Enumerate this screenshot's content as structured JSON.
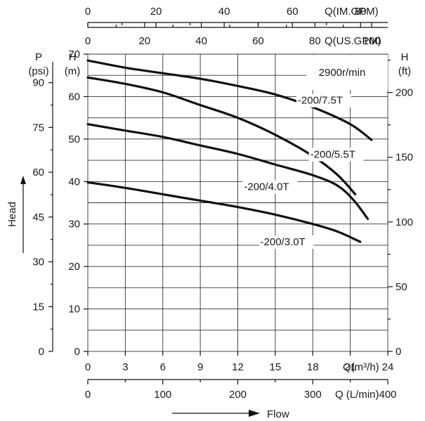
{
  "chart_data": {
    "type": "line",
    "speed_label": "2900r/min",
    "xlabel": "Flow",
    "ylabel": "Head",
    "grid": true,
    "x_axis": {
      "label": "Q(m³/h)",
      "range": [
        0,
        24
      ],
      "ticks": [
        "0",
        "3",
        "6",
        "9",
        "12",
        "15",
        "18",
        "21",
        "24"
      ]
    },
    "x_axis_lpm": {
      "label": "Q (L/min)",
      "range": [
        0,
        400
      ],
      "ticks": [
        "0",
        "100",
        "200",
        "300",
        "400"
      ]
    },
    "x_axis_usgpm": {
      "label": "Q(US.GPM)",
      "range": [
        0,
        100
      ],
      "ticks": [
        "0",
        "20",
        "40",
        "60",
        "80",
        "100"
      ]
    },
    "x_axis_imgpm": {
      "label": "Q(IM.GPM)",
      "range": [
        0,
        80
      ],
      "ticks": [
        "0",
        "20",
        "40",
        "60",
        "80"
      ]
    },
    "y_axis_m": {
      "label_top": "H",
      "label_unit": "(m)",
      "range": [
        0,
        70
      ],
      "ticks": [
        "0",
        "10",
        "20",
        "30",
        "40",
        "50",
        "60",
        "70"
      ]
    },
    "y_axis_psi": {
      "label_top": "P",
      "label_unit": "(psi)",
      "range": [
        0,
        90
      ],
      "ticks": [
        "0",
        "15",
        "30",
        "45",
        "60",
        "75",
        "90"
      ]
    },
    "y_axis_ft": {
      "label_top": "H",
      "label_unit": "(ft)",
      "range": [
        0,
        200
      ],
      "ticks": [
        "0",
        "50",
        "100",
        "150",
        "200"
      ]
    },
    "series": [
      {
        "name": "-200/7.5T",
        "x": [
          0,
          3,
          6,
          9,
          12,
          15,
          18,
          21,
          22.7
        ],
        "y": [
          68.5,
          66.8,
          65.5,
          64.2,
          62.5,
          60.5,
          57.5,
          53.5,
          49.8
        ]
      },
      {
        "name": "-200/5.5T",
        "x": [
          0,
          3,
          6,
          9,
          12,
          15,
          18,
          20,
          21.4
        ],
        "y": [
          64.5,
          63,
          61,
          58,
          55,
          51,
          46,
          41.5,
          37
        ]
      },
      {
        "name": "-200/4.0T",
        "x": [
          0,
          3,
          6,
          9,
          12,
          15,
          18,
          20,
          21.3,
          22.4
        ],
        "y": [
          53.5,
          52,
          50.5,
          48.5,
          46.5,
          44,
          41.5,
          39,
          35.5,
          31.2
        ]
      },
      {
        "name": "-200/3.0T",
        "x": [
          0,
          3,
          6,
          9,
          12,
          15,
          18,
          20,
          21.8
        ],
        "y": [
          39.8,
          38.5,
          37,
          35.5,
          34,
          32.2,
          30,
          28.2,
          25.8
        ]
      }
    ]
  }
}
